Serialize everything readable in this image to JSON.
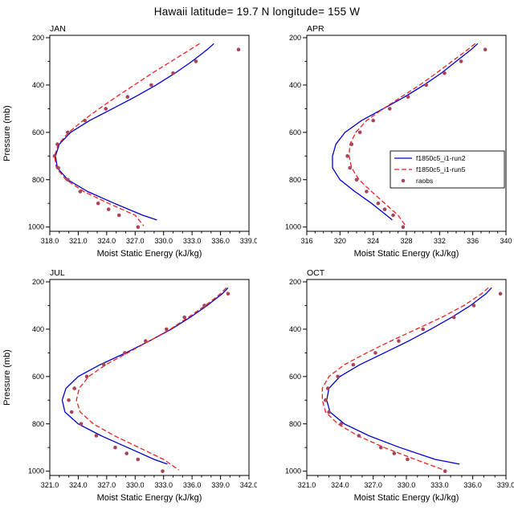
{
  "title": "Hawaii  latitude= 19.7 N longitude= 155 W",
  "colors": {
    "run2": "#0000d0",
    "run5": "#ee2222",
    "raobs": "#a8455a",
    "axis": "#000000"
  },
  "legend": {
    "entries": [
      {
        "label": "f1850c5_i1-run2",
        "style": "solid",
        "color": "#0000d0"
      },
      {
        "label": "f1850c5_i1-run5",
        "style": "dashed",
        "color": "#ee2222"
      },
      {
        "label": "raobs",
        "style": "dot",
        "color": "#a8455a"
      }
    ]
  },
  "chart_data": [
    {
      "type": "line",
      "title": "JAN",
      "xlabel": "Moist Static Energy (kJ/kg)",
      "ylabel": "Pressure (mb)",
      "xlim": [
        318,
        339
      ],
      "xticks": [
        318,
        321,
        324,
        327,
        330,
        333,
        336,
        339
      ],
      "xtick_labels": [
        "318.0",
        "321.0",
        "324.0",
        "327.0",
        "330.0",
        "333.0",
        "336.0",
        "339.0"
      ],
      "ylim": [
        200,
        1000
      ],
      "yticks": [
        200,
        400,
        600,
        800,
        1000
      ],
      "y_inverted": true,
      "show_legend": false,
      "series": [
        {
          "name": "f1850c5_i1-run2",
          "style": "solid",
          "color": "#0000d0",
          "pressure": [
            225,
            250,
            300,
            350,
            400,
            450,
            500,
            550,
            600,
            650,
            700,
            750,
            800,
            850,
            900,
            950,
            970
          ],
          "values": [
            335.3,
            334.6,
            333.0,
            331.2,
            329.2,
            327.0,
            324.6,
            322.2,
            320.2,
            319.0,
            318.6,
            318.8,
            319.9,
            322.0,
            324.8,
            327.8,
            329.3
          ]
        },
        {
          "name": "f1850c5_i1-run5",
          "style": "dashed",
          "color": "#ee2222",
          "pressure": [
            225,
            250,
            300,
            350,
            400,
            450,
            500,
            550,
            600,
            650,
            700,
            750,
            800,
            850,
            900,
            950,
            995
          ],
          "values": [
            333.8,
            332.8,
            330.8,
            328.8,
            326.9,
            325.0,
            323.2,
            321.5,
            320.0,
            318.9,
            318.5,
            318.7,
            319.7,
            321.6,
            324.2,
            327.0,
            327.9
          ]
        }
      ],
      "raobs": {
        "name": "raobs",
        "color": "#a8455a",
        "pressure": [
          250,
          300,
          350,
          400,
          450,
          500,
          550,
          600,
          650,
          700,
          750,
          800,
          850,
          900,
          925,
          950,
          1000
        ],
        "values": [
          337.9,
          333.4,
          331.0,
          328.7,
          326.2,
          323.9,
          321.7,
          319.9,
          318.8,
          318.5,
          318.9,
          319.9,
          321.2,
          323.1,
          324.2,
          325.3,
          327.3
        ]
      }
    },
    {
      "type": "line",
      "title": "APR",
      "xlabel": "Moist Static Energy (kJ/kg)",
      "ylabel": "",
      "xlim": [
        316,
        340
      ],
      "xticks": [
        316,
        320,
        324,
        328,
        332,
        336,
        340
      ],
      "xtick_labels": [
        "316",
        "320",
        "324",
        "328",
        "332",
        "336",
        "340"
      ],
      "ylim": [
        200,
        1000
      ],
      "yticks": [
        200,
        400,
        600,
        800,
        1000
      ],
      "y_inverted": true,
      "show_legend": true,
      "series": [
        {
          "name": "f1850c5_i1-run2",
          "style": "solid",
          "color": "#0000d0",
          "pressure": [
            225,
            250,
            300,
            350,
            400,
            450,
            500,
            550,
            600,
            650,
            700,
            750,
            800,
            850,
            900,
            950,
            970
          ],
          "values": [
            336.6,
            335.8,
            334.0,
            332.2,
            330.1,
            327.8,
            325.2,
            322.6,
            320.6,
            319.5,
            319.1,
            319.1,
            320.0,
            321.8,
            323.8,
            325.6,
            326.3
          ]
        },
        {
          "name": "f1850c5_i1-run5",
          "style": "dashed",
          "color": "#ee2222",
          "pressure": [
            225,
            250,
            300,
            350,
            400,
            450,
            500,
            550,
            600,
            650,
            700,
            750,
            800,
            850,
            900,
            950,
            995
          ],
          "values": [
            336.3,
            335.4,
            333.5,
            331.6,
            329.6,
            327.4,
            325.2,
            323.2,
            321.9,
            321.2,
            321.1,
            321.4,
            322.3,
            323.8,
            325.4,
            327.0,
            327.9
          ]
        }
      ],
      "raobs": {
        "name": "raobs",
        "color": "#a8455a",
        "pressure": [
          250,
          300,
          350,
          400,
          450,
          500,
          550,
          600,
          650,
          700,
          750,
          800,
          850,
          900,
          925,
          950,
          1000
        ],
        "values": [
          337.5,
          334.6,
          332.6,
          330.4,
          328.2,
          326.0,
          324.0,
          322.4,
          321.4,
          320.9,
          321.2,
          322.0,
          323.2,
          324.6,
          325.4,
          326.4,
          327.6
        ]
      }
    },
    {
      "type": "line",
      "title": "JUL",
      "xlabel": "Moist Static Energy (kJ/kg)",
      "ylabel": "Pressure (mb)",
      "xlim": [
        321,
        342
      ],
      "xticks": [
        321,
        324,
        327,
        330,
        333,
        336,
        339,
        342
      ],
      "xtick_labels": [
        "321.0",
        "324.0",
        "327.0",
        "330.0",
        "333.0",
        "336.0",
        "339.0",
        "342.0"
      ],
      "ylim": [
        200,
        1000
      ],
      "yticks": [
        200,
        400,
        600,
        800,
        1000
      ],
      "y_inverted": true,
      "show_legend": false,
      "series": [
        {
          "name": "f1850c5_i1-run2",
          "style": "solid",
          "color": "#0000d0",
          "pressure": [
            225,
            250,
            300,
            350,
            400,
            450,
            500,
            550,
            600,
            650,
            700,
            750,
            800,
            850,
            900,
            950,
            970
          ],
          "values": [
            339.8,
            339.2,
            337.6,
            335.8,
            333.8,
            331.5,
            329.0,
            326.3,
            324.0,
            322.7,
            322.3,
            322.6,
            324.0,
            326.4,
            329.2,
            332.0,
            333.4
          ]
        },
        {
          "name": "f1850c5_i1-run5",
          "style": "dashed",
          "color": "#ee2222",
          "pressure": [
            225,
            250,
            300,
            350,
            400,
            450,
            500,
            550,
            600,
            650,
            700,
            750,
            800,
            850,
            900,
            950,
            995
          ],
          "values": [
            339.6,
            339.0,
            337.4,
            335.6,
            333.7,
            331.5,
            329.2,
            326.9,
            325.1,
            324.1,
            323.8,
            324.2,
            325.6,
            327.8,
            330.4,
            333.0,
            334.6
          ]
        }
      ],
      "raobs": {
        "name": "raobs",
        "color": "#a8455a",
        "pressure": [
          250,
          300,
          350,
          400,
          450,
          500,
          550,
          600,
          650,
          700,
          750,
          800,
          850,
          900,
          925,
          950,
          1000
        ],
        "values": [
          339.8,
          337.3,
          335.2,
          333.3,
          331.1,
          328.9,
          326.7,
          324.9,
          323.6,
          323.0,
          323.3,
          324.3,
          325.9,
          327.9,
          329.1,
          330.3,
          332.9
        ]
      }
    },
    {
      "type": "line",
      "title": "OCT",
      "xlabel": "Moist Static Energy (kJ/kg)",
      "ylabel": "",
      "xlim": [
        321,
        339
      ],
      "xticks": [
        321,
        324,
        327,
        330,
        333,
        336,
        339
      ],
      "xtick_labels": [
        "321.0",
        "324.0",
        "327.0",
        "330.0",
        "333.0",
        "336.0",
        "339.0"
      ],
      "ylim": [
        200,
        1000
      ],
      "yticks": [
        200,
        400,
        600,
        800,
        1000
      ],
      "y_inverted": true,
      "show_legend": false,
      "series": [
        {
          "name": "f1850c5_i1-run2",
          "style": "solid",
          "color": "#0000d0",
          "pressure": [
            225,
            250,
            300,
            350,
            400,
            450,
            500,
            550,
            600,
            650,
            700,
            750,
            800,
            850,
            900,
            950,
            970
          ],
          "values": [
            337.7,
            337.2,
            335.8,
            334.1,
            332.2,
            330.2,
            328.0,
            325.8,
            324.0,
            323.0,
            322.8,
            323.1,
            324.4,
            326.6,
            329.4,
            332.6,
            334.8
          ]
        },
        {
          "name": "f1850c5_i1-run5",
          "style": "dashed",
          "color": "#ee2222",
          "pressure": [
            225,
            250,
            300,
            350,
            400,
            450,
            500,
            550,
            600,
            650,
            700,
            750,
            800,
            850,
            900,
            950,
            995
          ],
          "values": [
            337.4,
            336.8,
            335.2,
            333.2,
            330.9,
            328.6,
            326.4,
            324.4,
            323.0,
            322.4,
            322.4,
            322.7,
            323.8,
            325.6,
            328.0,
            330.8,
            333.4
          ]
        }
      ],
      "raobs": {
        "name": "raobs",
        "color": "#a8455a",
        "pressure": [
          250,
          300,
          350,
          400,
          450,
          500,
          550,
          600,
          650,
          700,
          750,
          800,
          850,
          900,
          925,
          950,
          1000
        ],
        "values": [
          338.5,
          336.1,
          334.3,
          331.5,
          329.3,
          327.2,
          325.2,
          323.8,
          322.9,
          322.7,
          323.0,
          324.1,
          325.7,
          327.7,
          328.9,
          330.1,
          333.5
        ]
      }
    }
  ]
}
